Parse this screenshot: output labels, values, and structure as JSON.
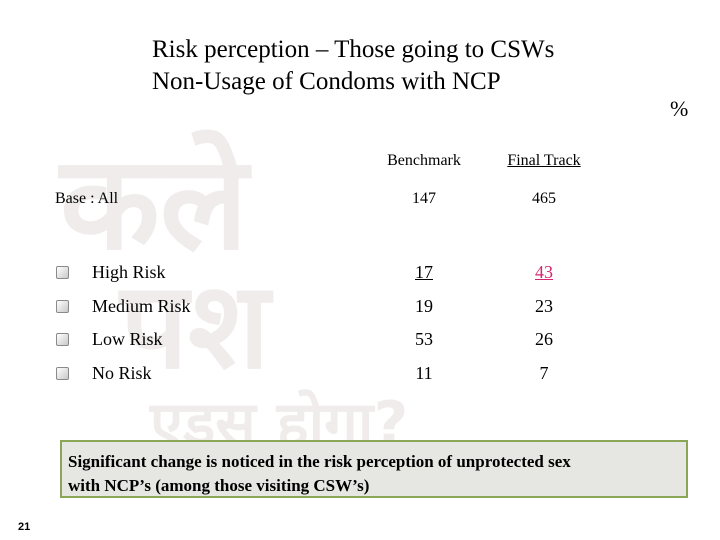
{
  "title": [
    "Risk perception – Those going to CSWs",
    "Non-Usage of Condoms with NCP"
  ],
  "unit": "%",
  "table": {
    "columns": [
      "Benchmark",
      "Final Track"
    ],
    "base": {
      "label": "Base : All",
      "values": [
        147,
        465
      ]
    },
    "rows": [
      {
        "label": "High Risk",
        "values": [
          17,
          43
        ]
      },
      {
        "label": "Medium Risk",
        "values": [
          19,
          23
        ]
      },
      {
        "label": "Low Risk",
        "values": [
          53,
          26
        ]
      },
      {
        "label": "No Risk",
        "values": [
          11,
          7
        ]
      }
    ]
  },
  "note": [
    "Significant change is noticed in the risk perception of unprotected sex",
    "with NCP’s (among those visiting CSW’s)"
  ],
  "page_number": "21"
}
